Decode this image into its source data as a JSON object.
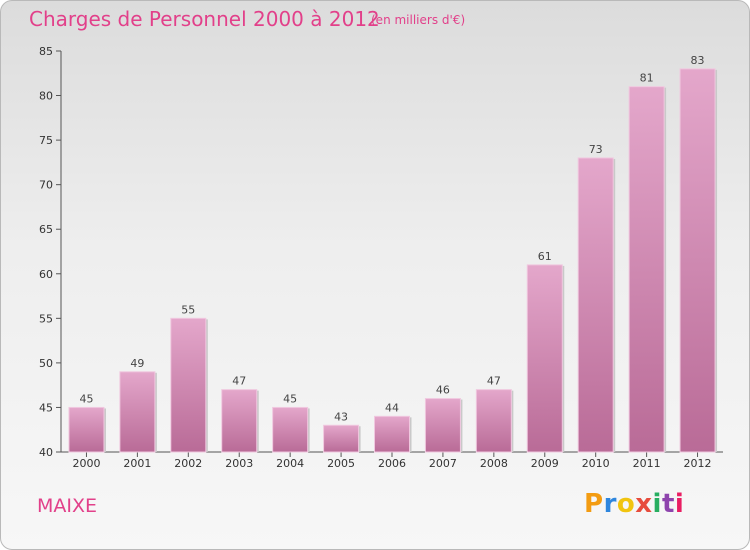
{
  "chart_data": {
    "type": "bar",
    "title": "Charges de Personnel 2000 à 2012",
    "subtitle": "(en milliers d'€)",
    "categories": [
      "2000",
      "2001",
      "2002",
      "2003",
      "2004",
      "2005",
      "2006",
      "2007",
      "2008",
      "2009",
      "2010",
      "2011",
      "2012"
    ],
    "values": [
      45,
      49,
      55,
      47,
      45,
      43,
      44,
      46,
      47,
      61,
      73,
      81,
      83
    ],
    "ylim": [
      40,
      85
    ],
    "yticks": [
      40,
      45,
      50,
      55,
      60,
      65,
      70,
      75,
      80,
      85
    ],
    "grid": false,
    "bar_color": "#d98ab7"
  },
  "commune": "MAIXE",
  "logo": {
    "letters": [
      "P",
      "r",
      "o",
      "x",
      "i",
      "t",
      "i"
    ],
    "colors": [
      "#f39c12",
      "#2e86de",
      "#f1c40f",
      "#e74c3c",
      "#27ae60",
      "#8e44ad",
      "#e91e63"
    ]
  }
}
